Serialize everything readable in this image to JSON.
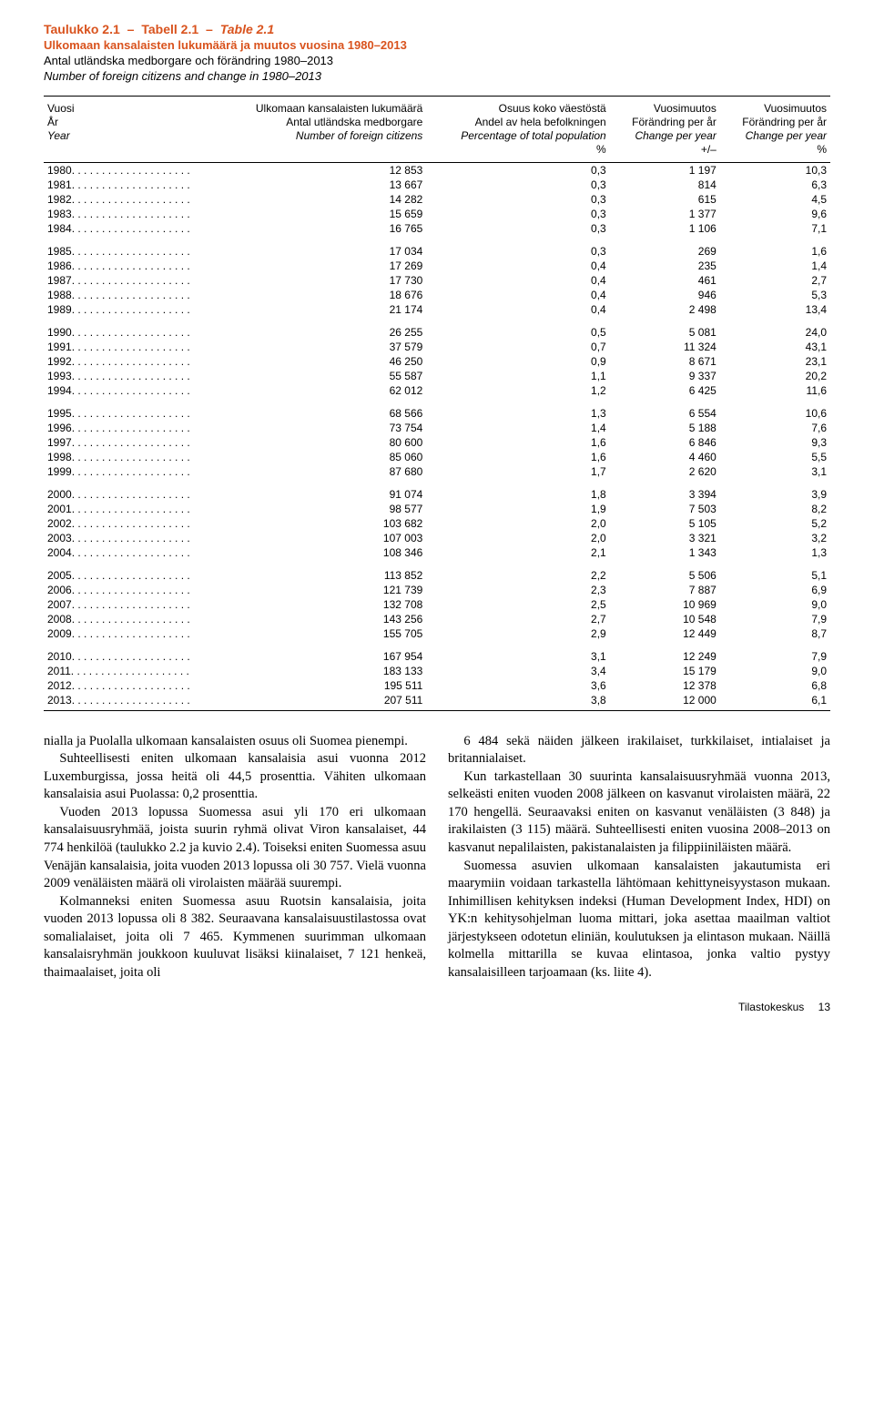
{
  "caption": {
    "label_fi": "Taulukko 2.1",
    "label_sv": "Tabell 2.1",
    "label_en": "Table 2.1",
    "title_fi": "Ulkomaan kansalaisten lukumäärä ja muutos vuosina 1980–2013",
    "title_sv": "Antal utländska medborgare och förändring 1980–2013",
    "title_en": "Number of foreign citizens and change in 1980–2013"
  },
  "columns": [
    {
      "fi": "Vuosi",
      "sv": "År",
      "en": "Year",
      "unit": "",
      "align": "left"
    },
    {
      "fi": "Ulkomaan kansalaisten lukumäärä",
      "sv": "Antal utländska medborgare",
      "en": "Number of foreign citizens",
      "unit": "",
      "align": "right"
    },
    {
      "fi": "Osuus koko väestöstä",
      "sv": "Andel av hela befolkningen",
      "en": "Percentage of total population",
      "unit": "%",
      "align": "right"
    },
    {
      "fi": "Vuosimuutos",
      "sv": "Förändring per år",
      "en": "Change per year",
      "unit": "+/–",
      "align": "right"
    },
    {
      "fi": "Vuosimuutos",
      "sv": "Förändring per år",
      "en": "Change per year",
      "unit": "%",
      "align": "right"
    }
  ],
  "groups": [
    [
      [
        "1980",
        "12 853",
        "0,3",
        "1 197",
        "10,3"
      ],
      [
        "1981",
        "13 667",
        "0,3",
        "814",
        "6,3"
      ],
      [
        "1982",
        "14 282",
        "0,3",
        "615",
        "4,5"
      ],
      [
        "1983",
        "15 659",
        "0,3",
        "1 377",
        "9,6"
      ],
      [
        "1984",
        "16 765",
        "0,3",
        "1 106",
        "7,1"
      ]
    ],
    [
      [
        "1985",
        "17 034",
        "0,3",
        "269",
        "1,6"
      ],
      [
        "1986",
        "17 269",
        "0,4",
        "235",
        "1,4"
      ],
      [
        "1987",
        "17 730",
        "0,4",
        "461",
        "2,7"
      ],
      [
        "1988",
        "18 676",
        "0,4",
        "946",
        "5,3"
      ],
      [
        "1989",
        "21 174",
        "0,4",
        "2 498",
        "13,4"
      ]
    ],
    [
      [
        "1990",
        "26 255",
        "0,5",
        "5 081",
        "24,0"
      ],
      [
        "1991",
        "37 579",
        "0,7",
        "11 324",
        "43,1"
      ],
      [
        "1992",
        "46 250",
        "0,9",
        "8 671",
        "23,1"
      ],
      [
        "1993",
        "55 587",
        "1,1",
        "9 337",
        "20,2"
      ],
      [
        "1994",
        "62 012",
        "1,2",
        "6 425",
        "11,6"
      ]
    ],
    [
      [
        "1995",
        "68 566",
        "1,3",
        "6 554",
        "10,6"
      ],
      [
        "1996",
        "73 754",
        "1,4",
        "5 188",
        "7,6"
      ],
      [
        "1997",
        "80 600",
        "1,6",
        "6 846",
        "9,3"
      ],
      [
        "1998",
        "85 060",
        "1,6",
        "4 460",
        "5,5"
      ],
      [
        "1999",
        "87 680",
        "1,7",
        "2 620",
        "3,1"
      ]
    ],
    [
      [
        "2000",
        "91 074",
        "1,8",
        "3 394",
        "3,9"
      ],
      [
        "2001",
        "98 577",
        "1,9",
        "7 503",
        "8,2"
      ],
      [
        "2002",
        "103 682",
        "2,0",
        "5 105",
        "5,2"
      ],
      [
        "2003",
        "107 003",
        "2,0",
        "3 321",
        "3,2"
      ],
      [
        "2004",
        "108 346",
        "2,1",
        "1 343",
        "1,3"
      ]
    ],
    [
      [
        "2005",
        "113 852",
        "2,2",
        "5 506",
        "5,1"
      ],
      [
        "2006",
        "121 739",
        "2,3",
        "7 887",
        "6,9"
      ],
      [
        "2007",
        "132 708",
        "2,5",
        "10 969",
        "9,0"
      ],
      [
        "2008",
        "143 256",
        "2,7",
        "10 548",
        "7,9"
      ],
      [
        "2009",
        "155 705",
        "2,9",
        "12 449",
        "8,7"
      ]
    ],
    [
      [
        "2010",
        "167 954",
        "3,1",
        "12 249",
        "7,9"
      ],
      [
        "2011",
        "183 133",
        "3,4",
        "15 179",
        "9,0"
      ],
      [
        "2012",
        "195 511",
        "3,6",
        "12 378",
        "6,8"
      ],
      [
        "2013",
        "207 511",
        "3,8",
        "12 000",
        "6,1"
      ]
    ]
  ],
  "paragraphs_left": [
    "nialla ja Puolalla ulkomaan kansalaisten osuus oli Suomea pienempi.",
    "Suhteellisesti eniten ulkomaan kansalaisia asui vuonna 2012 Luxemburgissa, jossa heitä oli 44,5 prosenttia. Vähiten ulkomaan kansalaisia asui Puolassa: 0,2 prosenttia.",
    "Vuoden 2013 lopussa Suomessa asui yli 170 eri ulkomaan kansalaisuusryhmää, joista suurin ryhmä olivat Viron kansalaiset, 44 774 henkilöä (taulukko 2.2 ja kuvio 2.4). Toiseksi eniten Suomessa asuu Venäjän kansalaisia, joita vuoden 2013 lopussa oli 30 757. Vielä vuonna 2009 venäläisten määrä oli virolaisten määrää suurempi.",
    "Kolmanneksi eniten Suomessa asuu Ruotsin kansalaisia, joita vuoden 2013 lopussa oli 8 382. Seuraavana kansalaisuustilastossa ovat somalialaiset, joita oli 7 465. Kymmenen suurimman ulkomaan kansalaisryhmän joukkoon kuuluvat lisäksi kiinalaiset, 7 121 henkeä, thaimaalaiset, joita oli"
  ],
  "paragraphs_right": [
    "6 484 sekä näiden jälkeen irakilaiset, turkkilaiset, intialaiset ja britannialaiset.",
    "Kun tarkastellaan 30 suurinta kansalaisuusryhmää vuonna 2013, selkeästi eniten vuoden 2008 jälkeen on kasvanut virolaisten määrä, 22 170 hengellä. Seuraavaksi eniten on kasvanut venäläisten (3 848) ja irakilaisten (3 115) määrä. Suhteellisesti eniten vuosina 2008–2013 on kasvanut nepalilaisten, pakistanalaisten ja filippiiniläisten määrä.",
    "Suomessa asuvien ulkomaan kansalaisten jakautumista eri maarymiin voidaan tarkastella lähtömaan kehittyneisyystason mukaan. Inhimillisen kehityksen indeksi (Human Development Index, HDI) on YK:n kehitysohjelman luoma mittari, joka asettaa maailman valtiot järjestykseen odotetun eliniän, koulutuksen ja elintason mukaan. Näillä kolmella mittarilla se kuvaa elintasoa, jonka valtio pystyy kansalaisilleen tarjoamaan (ks. liite 4)."
  ],
  "footer": {
    "source": "Tilastokeskus",
    "page": "13"
  },
  "style": {
    "accent_color": "#d9531e",
    "text_color": "#000000",
    "background_color": "#ffffff",
    "table_border_color": "#000000",
    "body_font": "Times New Roman",
    "ui_font": "Arial",
    "table_font_size": 12,
    "body_font_size": 14.5
  }
}
